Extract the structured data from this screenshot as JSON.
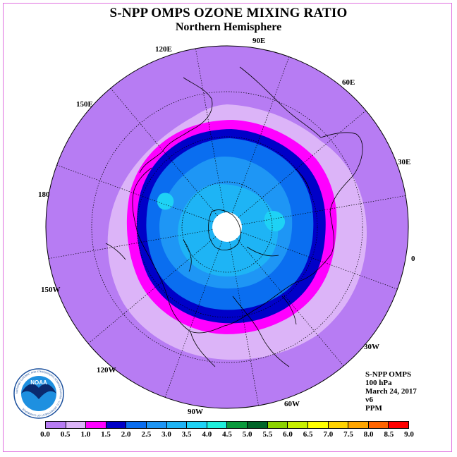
{
  "title": "S-NPP OMPS OZONE MIXING RATIO",
  "subtitle": "Northern Hemisphere",
  "longitude_labels": {
    "lon_0": "0",
    "lon_30e": "30E",
    "lon_60e": "60E",
    "lon_90e": "90E",
    "lon_120e": "120E",
    "lon_150e": "150E",
    "lon_180": "180",
    "lon_150w": "150W",
    "lon_120w": "120W",
    "lon_90w": "90W",
    "lon_60w": "60W",
    "lon_30w": "30W"
  },
  "info": {
    "instrument": "S-NPP OMPS",
    "level": "100 hPa",
    "date": "March 24, 2017",
    "version": "v6",
    "units": "PPM"
  },
  "logo": {
    "name": "NOAA",
    "ring_text": "NATIONAL OCEANIC AND ATMOSPHERIC ADMINISTRATION · U.S. DEPARTMENT OF COMMERCE"
  },
  "colorbar": {
    "ticks": [
      "0.0",
      "0.5",
      "1.0",
      "1.5",
      "2.0",
      "2.5",
      "3.0",
      "3.5",
      "4.0",
      "4.5",
      "5.0",
      "5.5",
      "6.0",
      "6.5",
      "7.0",
      "7.5",
      "8.0",
      "8.5",
      "9.0"
    ],
    "colors": [
      "#b77cf3",
      "#dcb4f8",
      "#ff00ff",
      "#0000c8",
      "#0a6ef0",
      "#1e96f5",
      "#1eb4f5",
      "#1ed2f5",
      "#1ef0dc",
      "#0a9a3c",
      "#006428",
      "#8cd200",
      "#c8f000",
      "#ffff00",
      "#ffd200",
      "#ffa500",
      "#ff6400",
      "#ff0000",
      "#8b5a2b"
    ]
  }
}
